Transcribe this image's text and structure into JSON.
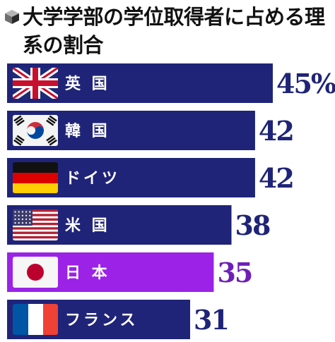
{
  "title": "大学学部の学位取得者に占める理系の割合",
  "chart_data": {
    "type": "bar",
    "orientation": "horizontal",
    "title": "大学学部の学位取得者に占める理系の割合",
    "categories": [
      "英 国",
      "韓 国",
      "ドイツ",
      "米 国",
      "日 本",
      "フランス"
    ],
    "values": [
      45,
      42,
      42,
      38,
      35,
      31
    ],
    "value_labels": [
      "45%",
      "42",
      "42",
      "38",
      "35",
      "31"
    ],
    "flags": [
      "uk-flag-icon",
      "south-korea-flag-icon",
      "germany-flag-icon",
      "usa-flag-icon",
      "japan-flag-icon",
      "france-flag-icon"
    ],
    "highlight_index": 4,
    "colors": {
      "bar": "#1f2478",
      "highlight_bar": "#9b22e6",
      "value_text": "#1f2478",
      "highlight_value_text": "#6f1fb8"
    },
    "xlim": [
      0,
      45
    ],
    "grid": false,
    "legend": "none"
  }
}
